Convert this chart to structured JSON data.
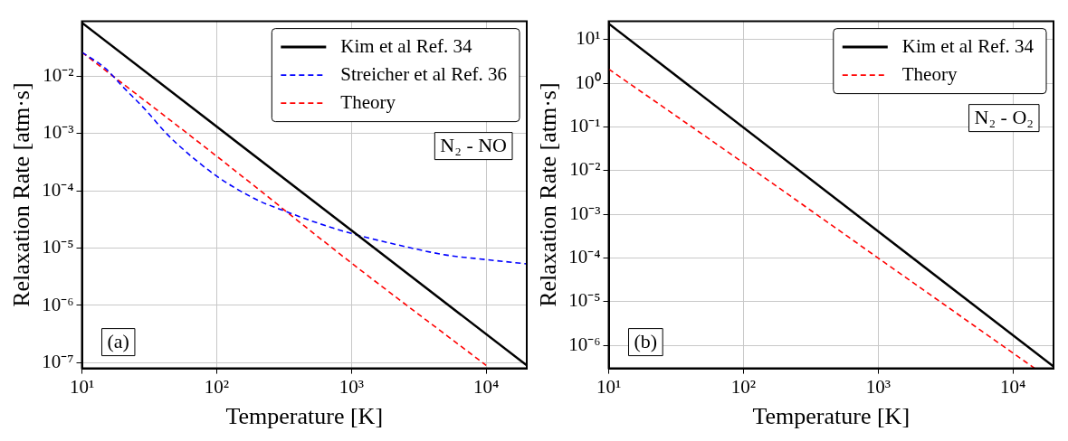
{
  "chart_data": [
    {
      "type": "line",
      "xlabel": "Temperature [K]",
      "ylabel": "Relaxation Rate [atm·s]",
      "log": "xy",
      "xlim": [
        10,
        20000
      ],
      "ylim": [
        8e-08,
        0.09
      ],
      "xticks": [
        {
          "value": 10,
          "label": "10¹"
        },
        {
          "value": 100,
          "label": "10²"
        },
        {
          "value": 1000,
          "label": "10³"
        },
        {
          "value": 10000,
          "label": "10⁴"
        }
      ],
      "yticks": [
        {
          "value": 1e-07,
          "label": "10⁻⁷"
        },
        {
          "value": 1e-06,
          "label": "10⁻⁶"
        },
        {
          "value": 1e-05,
          "label": "10⁻⁵"
        },
        {
          "value": 0.0001,
          "label": "10⁻⁴"
        },
        {
          "value": 0.001,
          "label": "10⁻³"
        },
        {
          "value": 0.01,
          "label": "10⁻²"
        }
      ],
      "grid": true,
      "legend": "top right",
      "marker": "none",
      "annotations": [
        "(a)",
        "N₂ - NO"
      ],
      "series": [
        {
          "name": "Kim et al Ref. 34",
          "color": "#000000",
          "line_style": "solid",
          "x": [
            10,
            20000
          ],
          "values": [
            0.085,
            9e-08
          ]
        },
        {
          "name": "Streicher et al Ref. 36",
          "color": "#0000ff",
          "line_style": "dashed",
          "x": [
            10,
            15,
            20,
            30,
            40,
            50,
            100,
            200,
            300,
            500,
            1000,
            2000,
            5000,
            10000,
            20000
          ],
          "values": [
            0.026,
            0.0135,
            0.0066,
            0.0025,
            0.00115,
            0.00068,
            0.00018,
            6.9e-05,
            4.7e-05,
            3e-05,
            1.8e-05,
            1.2e-05,
            7.6e-06,
            6.3e-06,
            5.3e-06
          ]
        },
        {
          "name": "Theory",
          "color": "#ff0000",
          "line_style": "dashed",
          "x": [
            10,
            100,
            1000,
            10000
          ],
          "values": [
            0.026,
            0.0004,
            5.5e-06,
            9e-08
          ]
        }
      ]
    },
    {
      "type": "line",
      "xlabel": "Temperature [K]",
      "ylabel": "Relaxation Rate [atm·s]",
      "log": "xy",
      "xlim": [
        10,
        20000
      ],
      "ylim": [
        3e-07,
        26
      ],
      "xticks": [
        {
          "value": 10,
          "label": "10¹"
        },
        {
          "value": 100,
          "label": "10²"
        },
        {
          "value": 1000,
          "label": "10³"
        },
        {
          "value": 10000,
          "label": "10⁴"
        }
      ],
      "yticks": [
        {
          "value": 1e-06,
          "label": "10⁻⁶"
        },
        {
          "value": 1e-05,
          "label": "10⁻⁵"
        },
        {
          "value": 0.0001,
          "label": "10⁻⁴"
        },
        {
          "value": 0.001,
          "label": "10⁻³"
        },
        {
          "value": 0.01,
          "label": "10⁻²"
        },
        {
          "value": 0.1,
          "label": "10⁻¹"
        },
        {
          "value": 1,
          "label": "10⁰"
        },
        {
          "value": 10,
          "label": "10¹"
        }
      ],
      "grid": true,
      "legend": "top right",
      "marker": "none",
      "annotations": [
        "(b)",
        "N₂ - O₂"
      ],
      "series": [
        {
          "name": "Kim et al Ref. 34",
          "color": "#000000",
          "line_style": "solid",
          "x": [
            10,
            20000
          ],
          "values": [
            23,
            3.3e-07
          ]
        },
        {
          "name": "Theory",
          "color": "#ff0000",
          "line_style": "dashed",
          "x": [
            10,
            100,
            1000,
            14500
          ],
          "values": [
            2.1,
            0.015,
            0.0001,
            3e-07
          ]
        }
      ]
    }
  ]
}
